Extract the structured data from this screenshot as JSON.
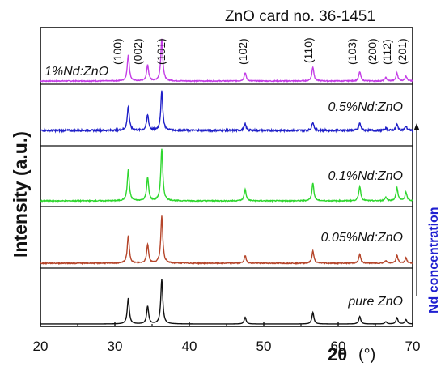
{
  "chart_data": {
    "type": "line",
    "title": "ZnO card no. 36-1451",
    "xlabel_main": "2θ",
    "xlabel_unit": "(°)",
    "ylabel": "Intensity (a.u.)",
    "right_label": "Nd concentration",
    "xlim": [
      20,
      70
    ],
    "x_ticks": [
      "20",
      "30",
      "40",
      "50",
      "60",
      "70"
    ],
    "colors": {
      "right_label": "#1f1fd0",
      "axes": "#111111"
    },
    "reflections": [
      {
        "hkl": "(100)",
        "x": 31.8
      },
      {
        "hkl": "(002)",
        "x": 34.4
      },
      {
        "hkl": "(101)",
        "x": 36.3
      },
      {
        "hkl": "(102)",
        "x": 47.5
      },
      {
        "hkl": "(110)",
        "x": 56.6
      },
      {
        "hkl": "(103)",
        "x": 62.9
      },
      {
        "hkl": "(200)",
        "x": 66.4
      },
      {
        "hkl": "(112)",
        "x": 67.9
      },
      {
        "hkl": "(201)",
        "x": 69.1
      }
    ],
    "series": [
      {
        "name": "1%Nd:ZnO",
        "color": "#c43ee6",
        "peaks": [
          [
            31.8,
            0.62
          ],
          [
            34.4,
            0.38
          ],
          [
            36.3,
            1.0
          ],
          [
            47.5,
            0.2
          ],
          [
            56.6,
            0.33
          ],
          [
            62.9,
            0.22
          ],
          [
            66.4,
            0.08
          ],
          [
            67.9,
            0.18
          ],
          [
            69.1,
            0.12
          ]
        ]
      },
      {
        "name": "0.5%Nd:ZnO",
        "color": "#1f1fc8",
        "peaks": [
          [
            31.8,
            0.62
          ],
          [
            34.4,
            0.4
          ],
          [
            36.3,
            1.0
          ],
          [
            47.5,
            0.16
          ],
          [
            56.6,
            0.22
          ],
          [
            62.9,
            0.19
          ],
          [
            66.4,
            0.06
          ],
          [
            67.9,
            0.15
          ],
          [
            69.1,
            0.11
          ]
        ]
      },
      {
        "name": "0.1%Nd:ZnO",
        "color": "#2ed62e",
        "peaks": [
          [
            31.8,
            0.6
          ],
          [
            34.4,
            0.45
          ],
          [
            36.3,
            1.0
          ],
          [
            47.5,
            0.22
          ],
          [
            56.6,
            0.34
          ],
          [
            62.9,
            0.28
          ],
          [
            66.4,
            0.07
          ],
          [
            67.9,
            0.25
          ],
          [
            69.1,
            0.16
          ]
        ]
      },
      {
        "name": "0.05%Nd:ZnO",
        "color": "#b5452a",
        "peaks": [
          [
            31.8,
            0.58
          ],
          [
            34.4,
            0.4
          ],
          [
            36.3,
            1.0
          ],
          [
            47.5,
            0.16
          ],
          [
            56.6,
            0.26
          ],
          [
            62.9,
            0.19
          ],
          [
            66.4,
            0.06
          ],
          [
            67.9,
            0.16
          ],
          [
            69.1,
            0.11
          ]
        ]
      },
      {
        "name": "pure ZnO",
        "color": "#111111",
        "peaks": [
          [
            31.8,
            0.58
          ],
          [
            34.4,
            0.4
          ],
          [
            36.3,
            1.0
          ],
          [
            47.5,
            0.15
          ],
          [
            56.6,
            0.26
          ],
          [
            62.9,
            0.17
          ],
          [
            66.4,
            0.05
          ],
          [
            67.9,
            0.14
          ],
          [
            69.1,
            0.1
          ]
        ]
      }
    ]
  }
}
